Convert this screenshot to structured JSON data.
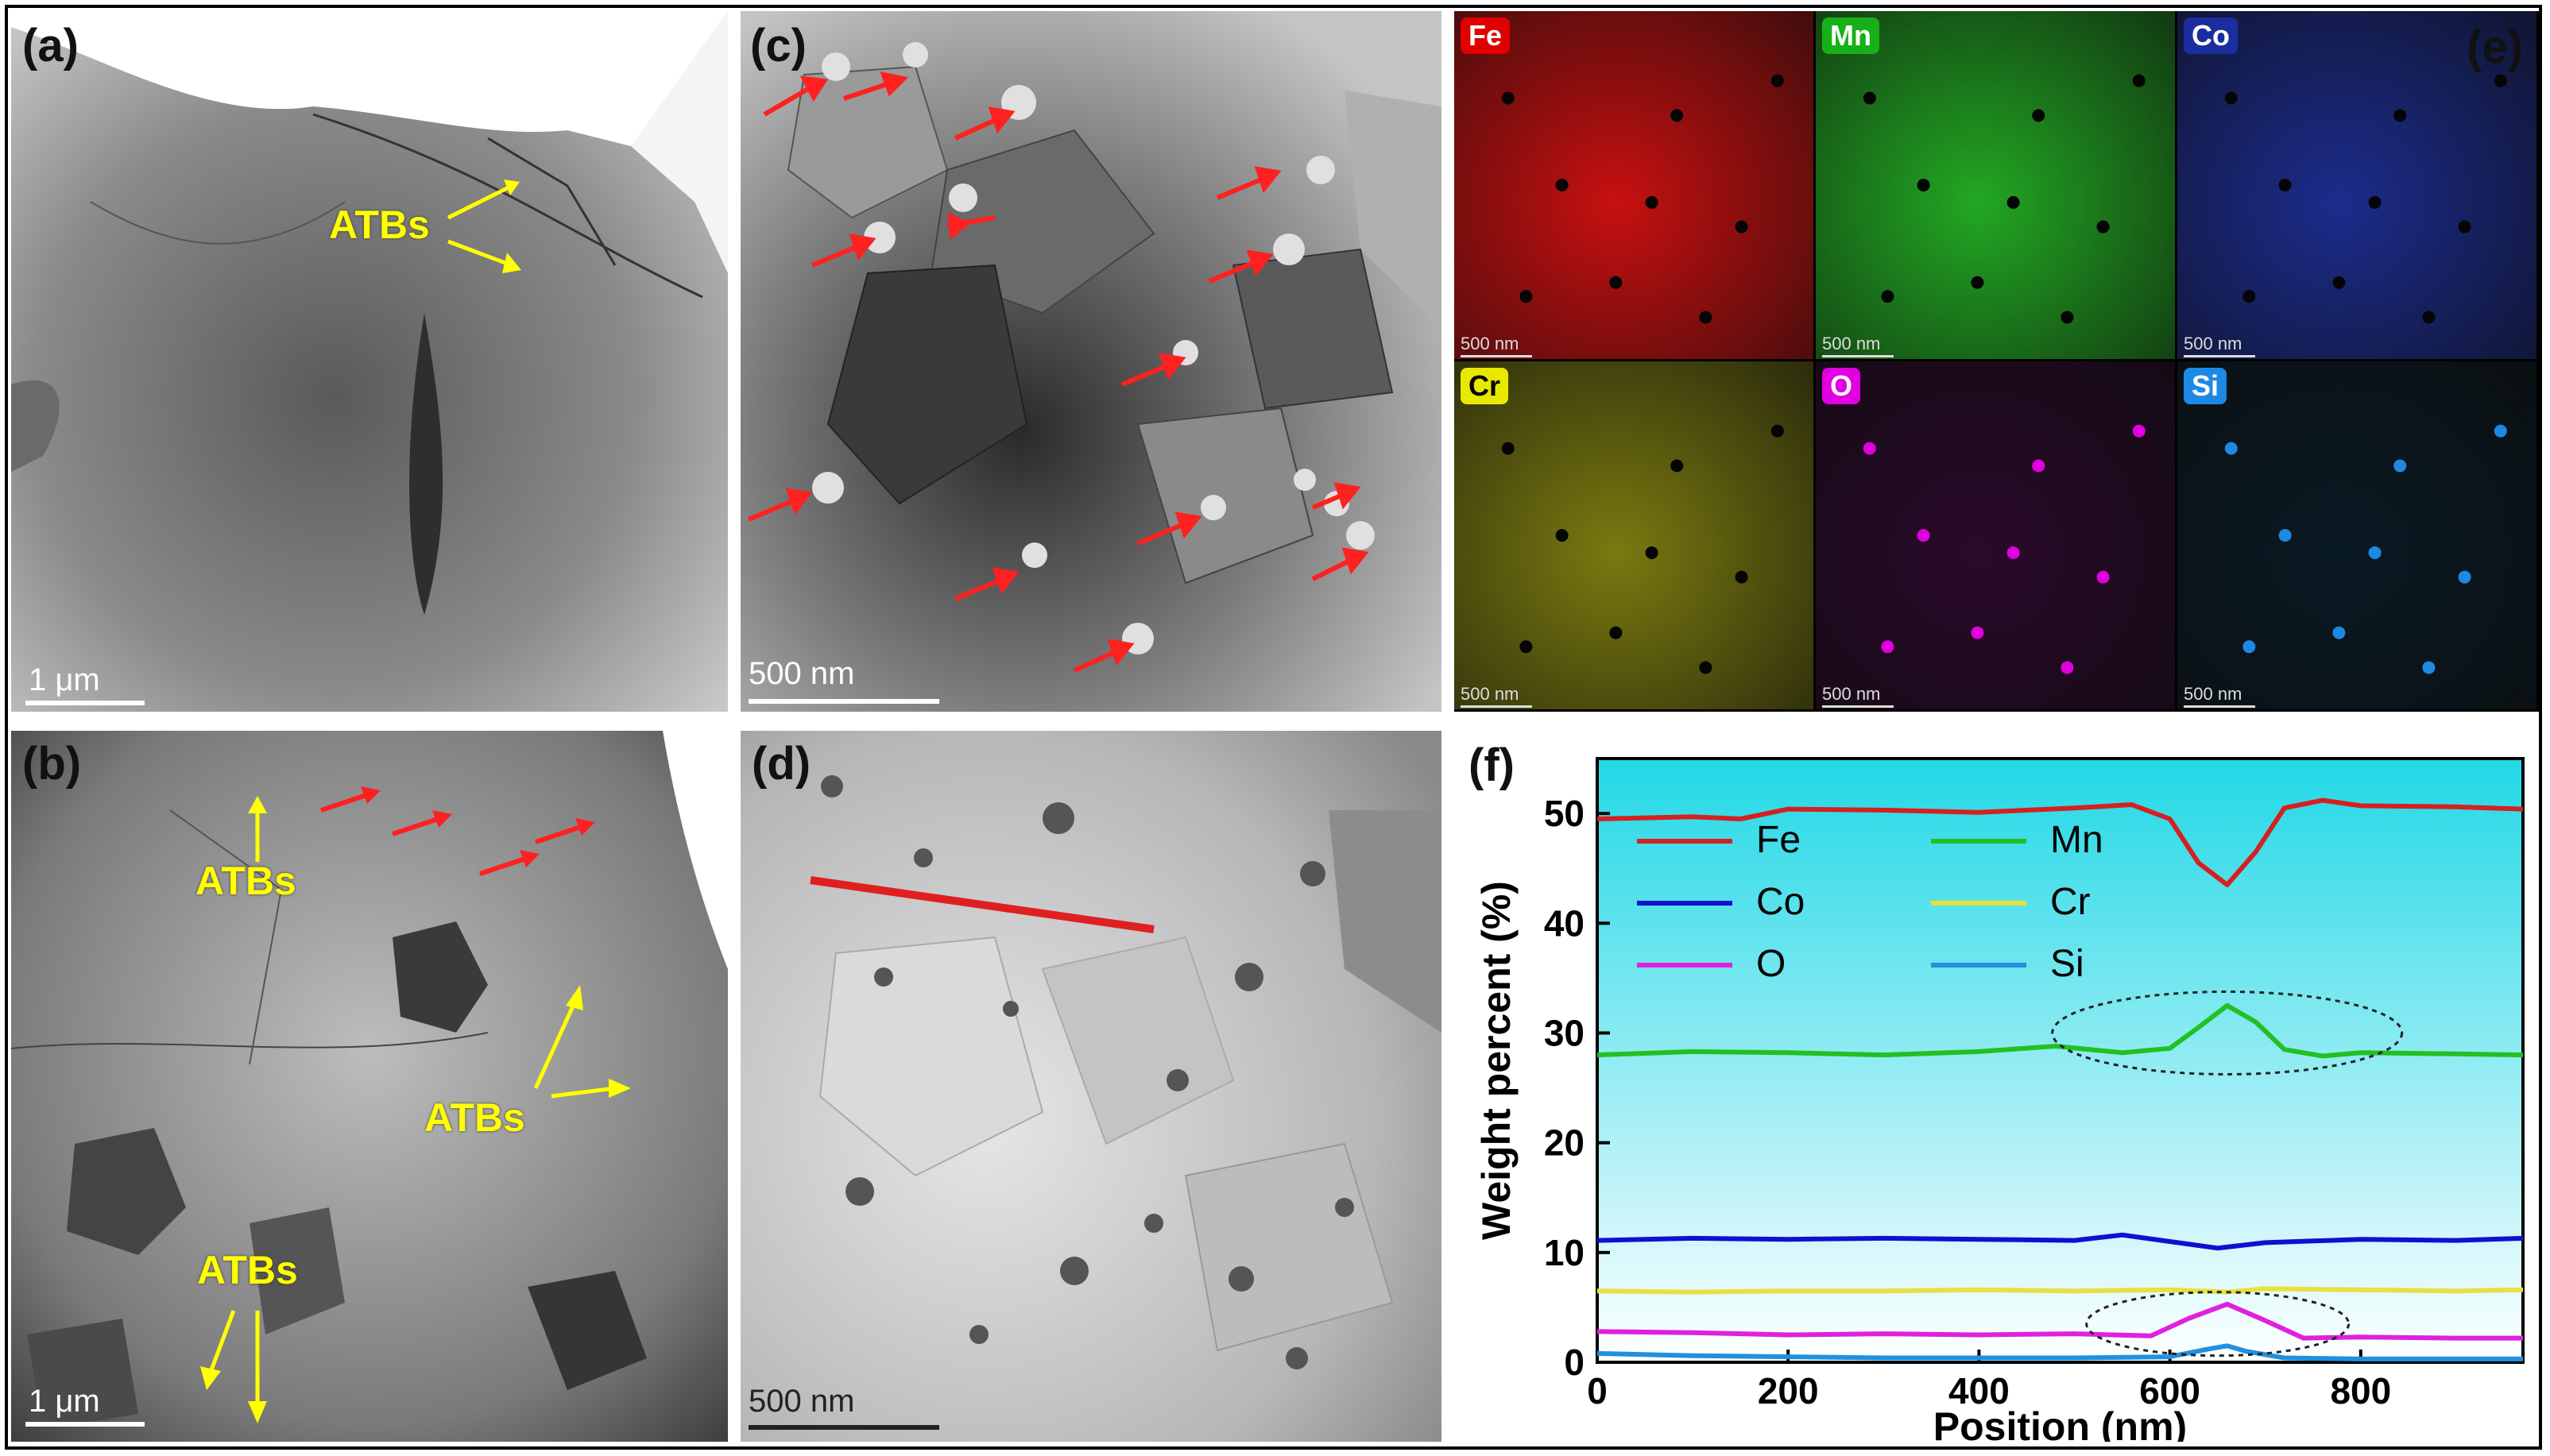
{
  "panels": {
    "a": {
      "label": "(a)",
      "scale": "1 μm",
      "annotation": "ATBs"
    },
    "b": {
      "label": "(b)",
      "scale": "1 μm",
      "annotations": [
        "ATBs",
        "ATBs",
        "ATBs"
      ]
    },
    "c": {
      "label": "(c)",
      "scale": "500 nm"
    },
    "d": {
      "label": "(d)",
      "scale": "500 nm"
    },
    "e": {
      "label": "(e)",
      "maps": [
        {
          "element": "Fe",
          "badge_color": "#e00000",
          "tint": "#c81010",
          "scale": "500 nm"
        },
        {
          "element": "Mn",
          "badge_color": "#18b018",
          "tint": "#22a822",
          "scale": "500 nm"
        },
        {
          "element": "Co",
          "badge_color": "#1a2ea0",
          "tint": "#1c2c8c",
          "scale": "500 nm"
        },
        {
          "element": "Cr",
          "badge_color": "#e8e800",
          "tint": "#7a7a10",
          "scale": "500 nm"
        },
        {
          "element": "O",
          "badge_color": "#e000e0",
          "tint": "#2a0a2a",
          "scale": "500 nm"
        },
        {
          "element": "Si",
          "badge_color": "#1e88e5",
          "tint": "#0a1a24",
          "scale": "500 nm"
        }
      ]
    },
    "f": {
      "label": "(f)"
    }
  },
  "chart_data": {
    "type": "line",
    "xlabel": "Position (nm)",
    "ylabel": "Weight percent (%)",
    "xlim": [
      0,
      970
    ],
    "ylim": [
      0,
      55
    ],
    "xticks": [
      0,
      200,
      400,
      600,
      800
    ],
    "yticks": [
      0,
      10,
      20,
      30,
      40,
      50
    ],
    "legend_placement": "top-left",
    "series": [
      {
        "name": "Fe",
        "color": "#d62020",
        "x": [
          0,
          100,
          150,
          200,
          300,
          400,
          500,
          560,
          600,
          630,
          660,
          690,
          720,
          760,
          800,
          900,
          970
        ],
        "y": [
          49.5,
          49.7,
          49.5,
          50.4,
          50.3,
          50.1,
          50.5,
          50.8,
          49.5,
          45.5,
          43.5,
          46.5,
          50.5,
          51.2,
          50.7,
          50.6,
          50.4
        ]
      },
      {
        "name": "Mn",
        "color": "#22c022",
        "x": [
          0,
          100,
          200,
          300,
          400,
          480,
          550,
          600,
          630,
          660,
          690,
          720,
          760,
          800,
          900,
          970
        ],
        "y": [
          28.0,
          28.3,
          28.2,
          28.0,
          28.3,
          28.8,
          28.2,
          28.6,
          30.5,
          32.5,
          31.0,
          28.5,
          27.9,
          28.2,
          28.1,
          28.0
        ]
      },
      {
        "name": "Co",
        "color": "#1010d0",
        "x": [
          0,
          100,
          200,
          300,
          400,
          500,
          550,
          600,
          650,
          700,
          800,
          900,
          970
        ],
        "y": [
          11.1,
          11.3,
          11.2,
          11.3,
          11.2,
          11.1,
          11.6,
          11.0,
          10.4,
          10.9,
          11.2,
          11.1,
          11.3
        ]
      },
      {
        "name": "Cr",
        "color": "#e8e040",
        "x": [
          0,
          100,
          200,
          300,
          400,
          500,
          600,
          660,
          700,
          800,
          900,
          970
        ],
        "y": [
          6.5,
          6.4,
          6.5,
          6.5,
          6.6,
          6.5,
          6.6,
          6.4,
          6.7,
          6.6,
          6.5,
          6.6
        ]
      },
      {
        "name": "O",
        "color": "#e020e0",
        "x": [
          0,
          100,
          200,
          300,
          400,
          500,
          580,
          620,
          660,
          700,
          740,
          800,
          900,
          970
        ],
        "y": [
          2.8,
          2.7,
          2.5,
          2.6,
          2.5,
          2.6,
          2.4,
          4.0,
          5.3,
          3.8,
          2.2,
          2.3,
          2.2,
          2.2
        ]
      },
      {
        "name": "Si",
        "color": "#2090e0",
        "x": [
          0,
          100,
          200,
          300,
          400,
          500,
          600,
          640,
          660,
          680,
          720,
          800,
          900,
          970
        ],
        "y": [
          0.8,
          0.6,
          0.5,
          0.4,
          0.4,
          0.4,
          0.5,
          1.2,
          1.5,
          1.0,
          0.4,
          0.3,
          0.3,
          0.3
        ]
      }
    ]
  }
}
